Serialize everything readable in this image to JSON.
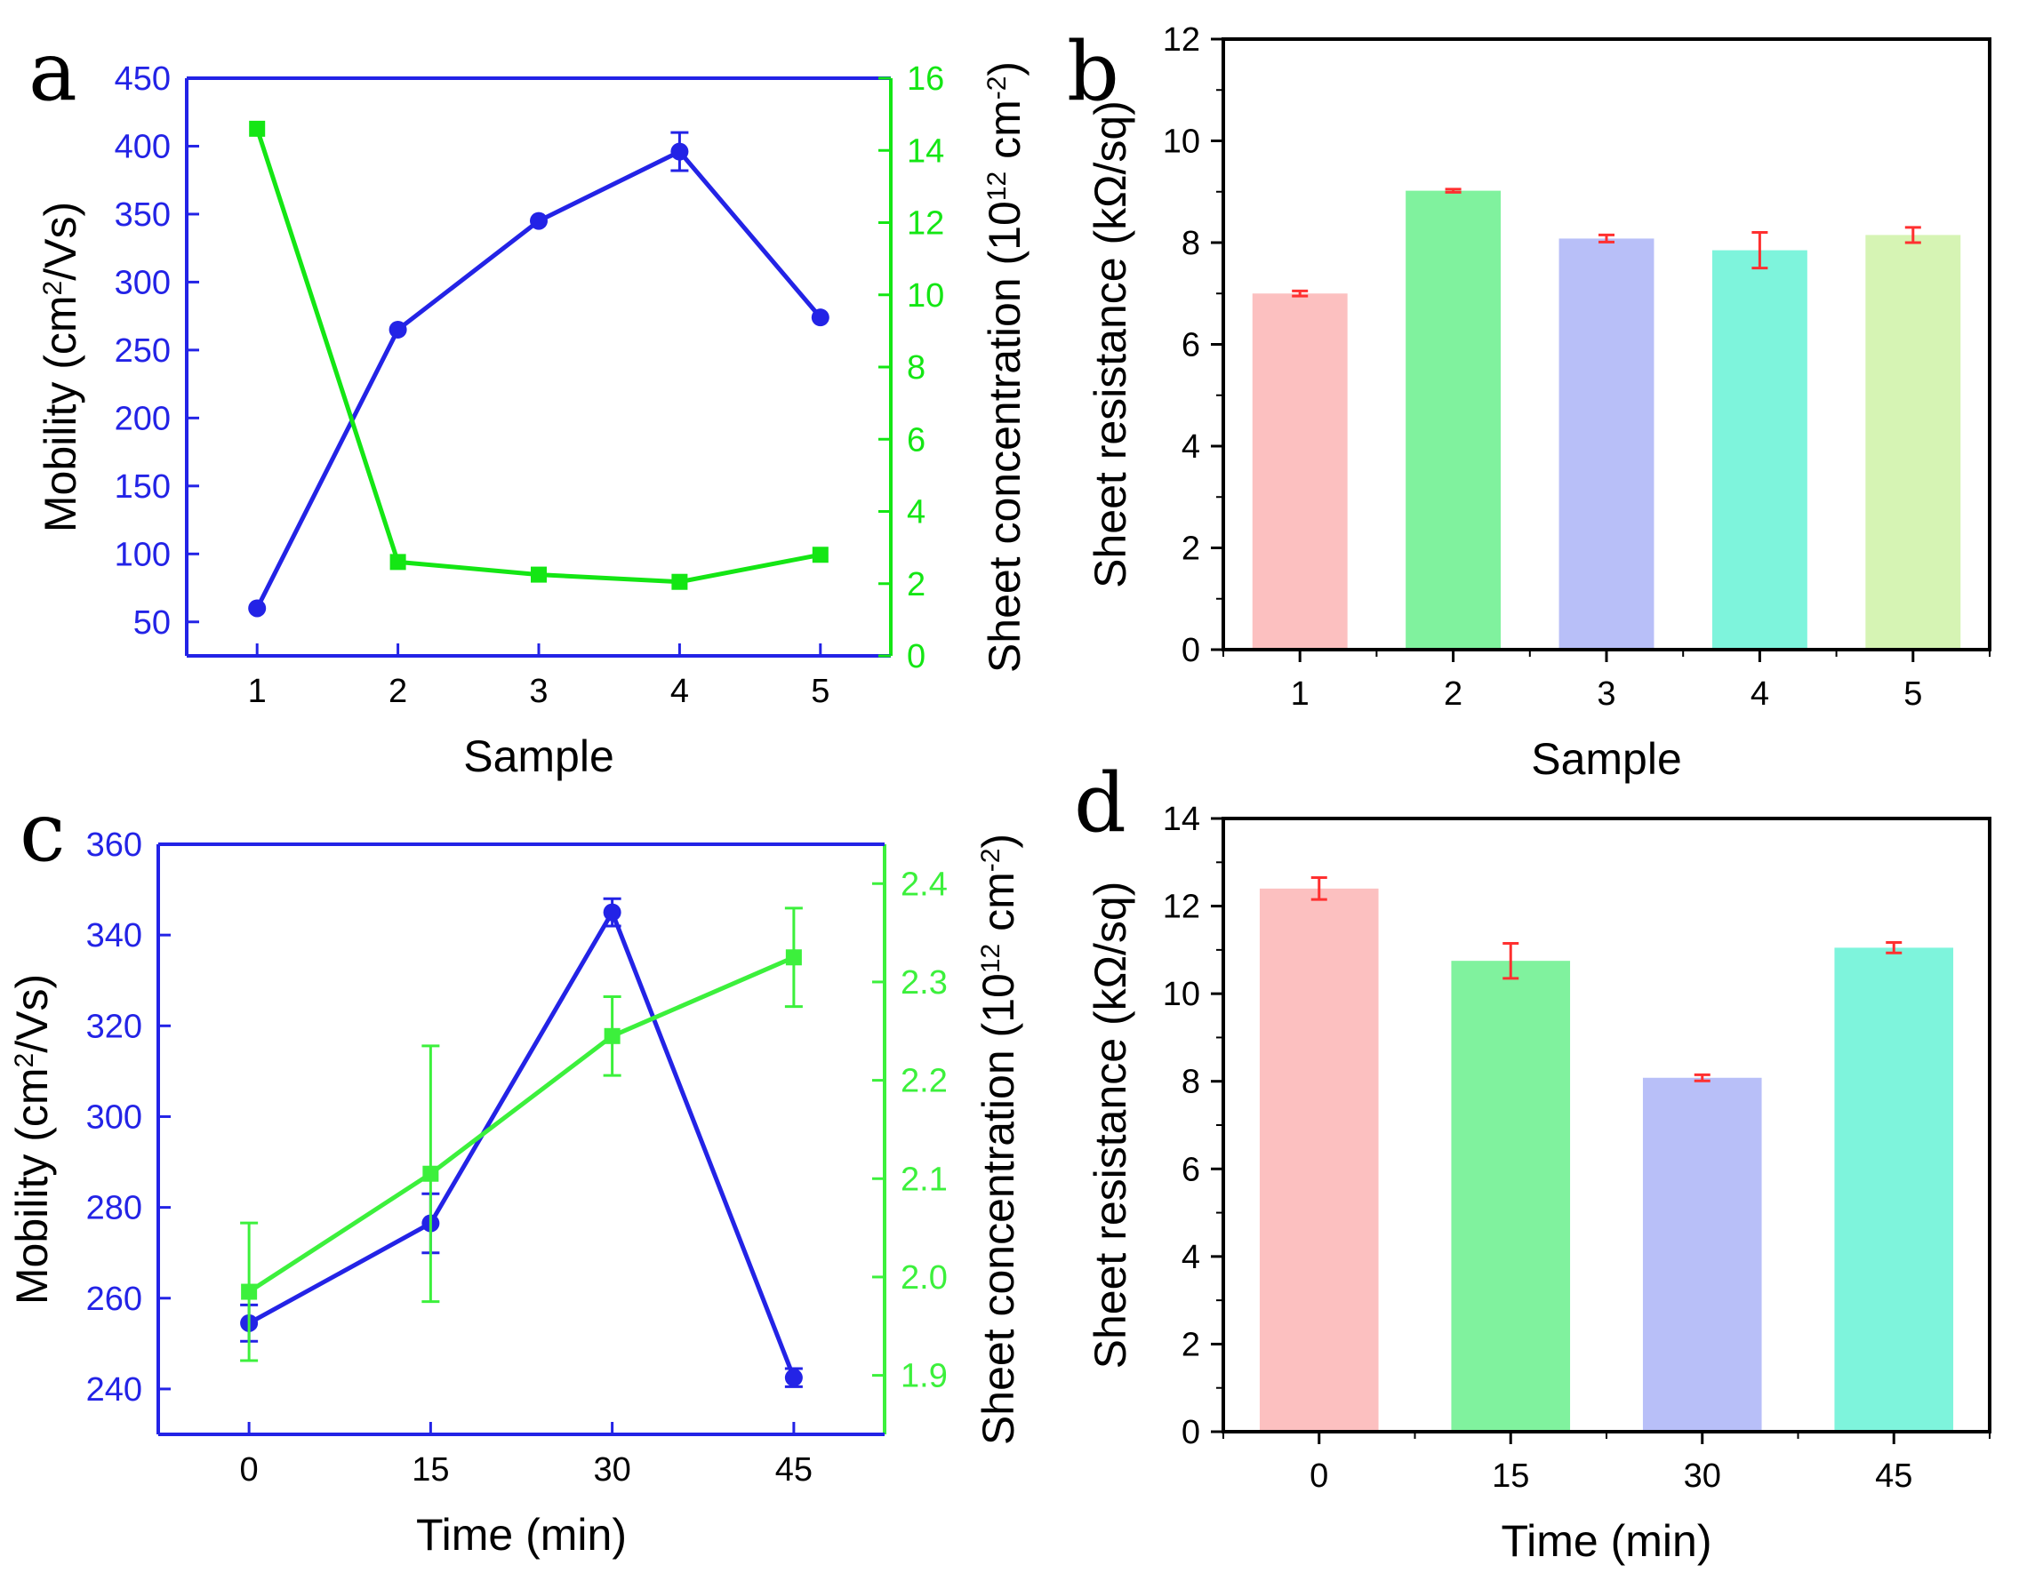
{
  "colors": {
    "mobility": "#2323e6",
    "concentration": "#14e614",
    "concentration_light": "#3cf03c",
    "errorbar": "#ff3030",
    "axis": "#000000"
  },
  "panel_labels": [
    "a",
    "b",
    "c",
    "d"
  ],
  "chart_data": [
    {
      "id": "a",
      "type": "line",
      "xlabel": "Sample",
      "x": [
        1,
        2,
        3,
        4,
        5
      ],
      "xticks": [
        "1",
        "2",
        "3",
        "4",
        "5"
      ],
      "xlim": [
        0.5,
        5.5
      ],
      "ylabel": "Mobility (cm²/Vs)",
      "ylabel_parts": [
        "Mobility (cm",
        "2",
        "/Vs)"
      ],
      "ylim": [
        25,
        450
      ],
      "yticks": [
        50,
        100,
        150,
        200,
        250,
        300,
        350,
        400,
        450
      ],
      "y2label": "Sheet concentration (10¹² cm⁻²)",
      "y2label_parts": [
        "Sheet concentration (10",
        "12",
        " cm",
        "-2",
        ")"
      ],
      "y2lim": [
        0,
        16
      ],
      "y2ticks": [
        0,
        2,
        4,
        6,
        8,
        10,
        12,
        14,
        16
      ],
      "series": [
        {
          "name": "Mobility",
          "axis": "left",
          "marker": "circle",
          "values": [
            60,
            265,
            345,
            396,
            274
          ],
          "errors": [
            0,
            0,
            0,
            14,
            0
          ]
        },
        {
          "name": "Sheet concentration",
          "axis": "right",
          "marker": "square",
          "values": [
            14.6,
            2.6,
            2.25,
            2.05,
            2.8
          ],
          "errors": [
            0,
            0,
            0,
            0,
            0
          ]
        }
      ]
    },
    {
      "id": "b",
      "type": "bar",
      "xlabel": "Sample",
      "categories": [
        "1",
        "2",
        "3",
        "4",
        "5"
      ],
      "ylabel": "Sheet resistance (kΩ/sq)",
      "ylim": [
        0,
        12
      ],
      "yticks": [
        0,
        2,
        4,
        6,
        8,
        10,
        12
      ],
      "values": [
        7.0,
        9.02,
        8.08,
        7.85,
        8.15
      ],
      "errors": [
        0.05,
        0.03,
        0.07,
        0.35,
        0.15
      ],
      "bar_colors": [
        "#fcc0c0",
        "#80f29e",
        "#b8bff8",
        "#7ef4dc",
        "#d6f4b4"
      ]
    },
    {
      "id": "c",
      "type": "line",
      "xlabel": "Time (min)",
      "x": [
        0,
        15,
        30,
        45
      ],
      "xticks": [
        "0",
        "15",
        "30",
        "45"
      ],
      "xlim": [
        -7.5,
        52.5
      ],
      "ylabel": "Mobility (cm²/Vs)",
      "ylabel_parts": [
        "Mobility (cm",
        "2",
        "/Vs)"
      ],
      "ylim": [
        230,
        360
      ],
      "yticks": [
        240,
        260,
        280,
        300,
        320,
        340,
        360
      ],
      "y2label": "Sheet concentration (10¹² cm⁻²)",
      "y2label_parts": [
        "Sheet concentration (10",
        "12",
        " cm",
        "-2",
        ")"
      ],
      "y2lim": [
        1.84,
        2.44
      ],
      "y2ticks": [
        1.9,
        2.0,
        2.1,
        2.2,
        2.3,
        2.4
      ],
      "y2ticklabels": [
        "1.9",
        "2.0",
        "2.1",
        "2.2",
        "2.3",
        "2.4"
      ],
      "series": [
        {
          "name": "Mobility",
          "axis": "left",
          "marker": "circle",
          "values": [
            254.5,
            276.5,
            345,
            242.5
          ],
          "errors": [
            4,
            6.5,
            3,
            2
          ]
        },
        {
          "name": "Sheet concentration",
          "axis": "right",
          "marker": "square",
          "values": [
            1.985,
            2.105,
            2.245,
            2.325
          ],
          "errors": [
            0.07,
            0.13,
            0.04,
            0.05
          ]
        }
      ]
    },
    {
      "id": "d",
      "type": "bar",
      "xlabel": "Time (min)",
      "categories": [
        "0",
        "15",
        "30",
        "45"
      ],
      "ylabel": "Sheet resistance (kΩ/sq)",
      "ylim": [
        0,
        14
      ],
      "yticks": [
        0,
        2,
        4,
        6,
        8,
        10,
        12,
        14
      ],
      "values": [
        12.4,
        10.75,
        8.08,
        11.05
      ],
      "errors": [
        0.25,
        0.4,
        0.07,
        0.12
      ],
      "bar_colors": [
        "#fcc0c0",
        "#80f29e",
        "#b8bff8",
        "#7ef4dc"
      ]
    }
  ]
}
